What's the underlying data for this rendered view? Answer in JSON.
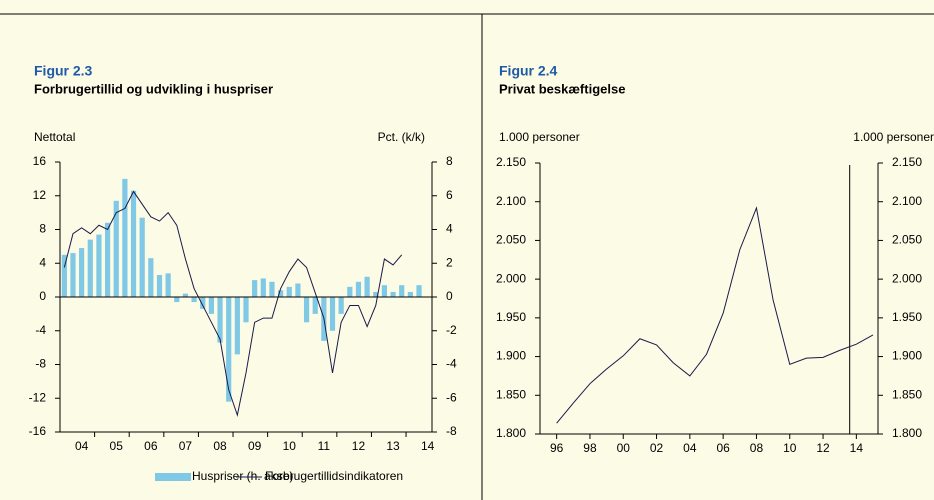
{
  "chart_data": [
    {
      "type": "combo",
      "title": "Figur 2.3",
      "subtitle": "Forbrugertillid og udvikling i huspriser",
      "ylabel": "Nettotal",
      "y2label": "Pct. (k/k)",
      "categories": [
        null,
        null,
        "04",
        null,
        null,
        null,
        "05",
        null,
        null,
        null,
        "06",
        null,
        null,
        null,
        "07",
        null,
        null,
        null,
        "08",
        null,
        null,
        null,
        "09",
        null,
        null,
        null,
        "10",
        null,
        null,
        null,
        "11",
        null,
        null,
        null,
        "12",
        null,
        null,
        null,
        "13",
        null,
        null,
        null,
        "14"
      ],
      "ylim": [
        -16,
        16
      ],
      "yticks": [
        -16,
        -12,
        -8,
        -4,
        0,
        4,
        8,
        12,
        16
      ],
      "y2lim": [
        -8,
        8
      ],
      "y2ticks": [
        -8,
        -6,
        -4,
        -2,
        0,
        2,
        4,
        6,
        8
      ],
      "series": [
        {
          "name": "Huspriser (h. akse)",
          "type": "bar",
          "axis": "y2",
          "color": "#7fc8e6",
          "values": [
            2.5,
            2.6,
            2.9,
            3.4,
            3.7,
            4.4,
            5.7,
            7.0,
            6.3,
            4.7,
            2.3,
            1.3,
            1.4,
            -0.3,
            0.2,
            -0.3,
            -0.7,
            -1.0,
            -2.7,
            -6.2,
            -3.4,
            -1.5,
            1.0,
            1.1,
            0.9,
            0.4,
            0.6,
            0.8,
            -1.5,
            -1.0,
            -2.6,
            -2.0,
            -1.0,
            0.6,
            0.9,
            1.2,
            0.3,
            0.7,
            0.3,
            0.7,
            0.3,
            0.7,
            null
          ]
        },
        {
          "name": "Forbrugertillidsindikatoren",
          "type": "line",
          "color": "#1a1a4a",
          "values": [
            3.5,
            7.5,
            8.2,
            7.5,
            8.5,
            8,
            10,
            10.5,
            12.5,
            11,
            9.5,
            9,
            10,
            8.5,
            4.5,
            1,
            -1,
            -3,
            -5,
            -11,
            -14,
            -9,
            -3,
            -2.5,
            -2.5,
            1,
            3,
            4.5,
            3.5,
            0.5,
            -2.5,
            -9,
            -3,
            -1,
            -1,
            -3.5,
            -1,
            4.5,
            3.8,
            5,
            null,
            null,
            null
          ]
        }
      ]
    },
    {
      "type": "line",
      "title": "Figur 2.4",
      "subtitle": "Privat beskæftigelse",
      "ylabel": "1.000 personer",
      "y2label": "1.000 personer",
      "x": [
        1996,
        1997,
        1998,
        1999,
        2000,
        2001,
        2002,
        2003,
        2004,
        2005,
        2006,
        2007,
        2008,
        2009,
        2010,
        2011,
        2012,
        2013,
        2014,
        2015
      ],
      "series": [
        {
          "name": null,
          "color": "#1a1a4a",
          "values": [
            1814,
            1840,
            1865,
            1884,
            1901,
            1923,
            1915,
            1892,
            1875,
            1903,
            1956,
            2038,
            2092,
            1973,
            1890,
            1898,
            1899,
            1908,
            1916,
            1928
          ]
        }
      ],
      "xlim": [
        1995,
        2015.3
      ],
      "xticks": [
        {
          "value": 1996,
          "label": "96"
        },
        {
          "value": 1998,
          "label": "98"
        },
        {
          "value": 2000,
          "label": "00"
        },
        {
          "value": 2002,
          "label": "02"
        },
        {
          "value": 2004,
          "label": "04"
        },
        {
          "value": 2006,
          "label": "06"
        },
        {
          "value": 2008,
          "label": "08"
        },
        {
          "value": 2010,
          "label": "10"
        },
        {
          "value": 2012,
          "label": "12"
        },
        {
          "value": 2014,
          "label": "14"
        }
      ],
      "ylim": [
        1800,
        2150
      ],
      "yticks": [
        {
          "value": 1800,
          "label": "1.800"
        },
        {
          "value": 1850,
          "label": "1.850"
        },
        {
          "value": 1900,
          "label": "1.900"
        },
        {
          "value": 1950,
          "label": "1.950"
        },
        {
          "value": 2000,
          "label": "2.000"
        },
        {
          "value": 2050,
          "label": "2.050"
        },
        {
          "value": 2100,
          "label": "2.100"
        },
        {
          "value": 2150,
          "label": "2.150"
        }
      ],
      "y2lim": [
        1800,
        2150
      ],
      "y2ticks": [
        {
          "value": 1800,
          "label": "1.800"
        },
        {
          "value": 1850,
          "label": "1.850"
        },
        {
          "value": 1900,
          "label": "1.900"
        },
        {
          "value": 1950,
          "label": "1.950"
        },
        {
          "value": 2000,
          "label": "2.000"
        },
        {
          "value": 2050,
          "label": "2.050"
        },
        {
          "value": 2100,
          "label": "2.100"
        },
        {
          "value": 2150,
          "label": "2.150"
        }
      ],
      "vline": 2013.6
    }
  ]
}
